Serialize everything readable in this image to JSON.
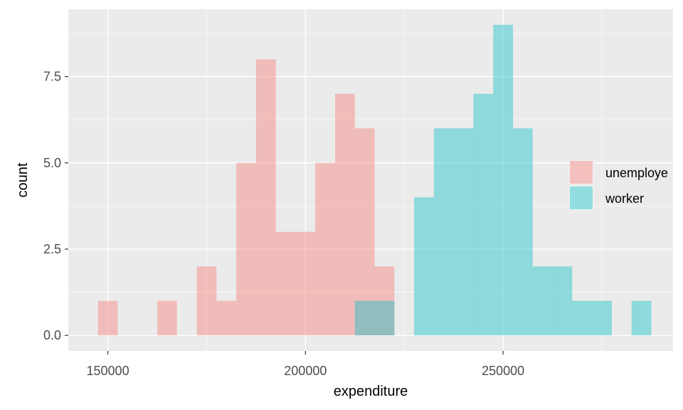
{
  "chart_data": {
    "type": "histogram",
    "xlabel": "expenditure",
    "ylabel": "count",
    "xlim": [
      140000,
      293000
    ],
    "ylim": [
      -0.45,
      9.45
    ],
    "x_ticks": [
      150000,
      200000,
      250000
    ],
    "x_tick_labels": [
      "150000",
      "200000",
      "250000"
    ],
    "y_ticks": [
      0,
      2.5,
      5,
      7.5
    ],
    "y_tick_labels": [
      "0.0",
      "2.5",
      "5.0",
      "7.5"
    ],
    "bin_width": 5000,
    "grid": true,
    "legend_position": "right",
    "series": [
      {
        "name": "unemploye",
        "color": "#F8766D",
        "bins": [
          {
            "x": 150000,
            "count": 1
          },
          {
            "x": 165000,
            "count": 1
          },
          {
            "x": 175000,
            "count": 2
          },
          {
            "x": 180000,
            "count": 1
          },
          {
            "x": 185000,
            "count": 5
          },
          {
            "x": 190000,
            "count": 8
          },
          {
            "x": 195000,
            "count": 3
          },
          {
            "x": 200000,
            "count": 3
          },
          {
            "x": 205000,
            "count": 5
          },
          {
            "x": 210000,
            "count": 7
          },
          {
            "x": 215000,
            "count": 6
          },
          {
            "x": 220000,
            "count": 2
          }
        ]
      },
      {
        "name": "worker",
        "color": "#00BFC4",
        "bins": [
          {
            "x": 215000,
            "count": 1
          },
          {
            "x": 220000,
            "count": 1
          },
          {
            "x": 230000,
            "count": 4
          },
          {
            "x": 235000,
            "count": 6
          },
          {
            "x": 240000,
            "count": 6
          },
          {
            "x": 245000,
            "count": 7
          },
          {
            "x": 250000,
            "count": 9
          },
          {
            "x": 255000,
            "count": 6
          },
          {
            "x": 260000,
            "count": 2
          },
          {
            "x": 265000,
            "count": 2
          },
          {
            "x": 270000,
            "count": 1
          },
          {
            "x": 275000,
            "count": 1
          },
          {
            "x": 285000,
            "count": 1
          }
        ]
      }
    ]
  }
}
